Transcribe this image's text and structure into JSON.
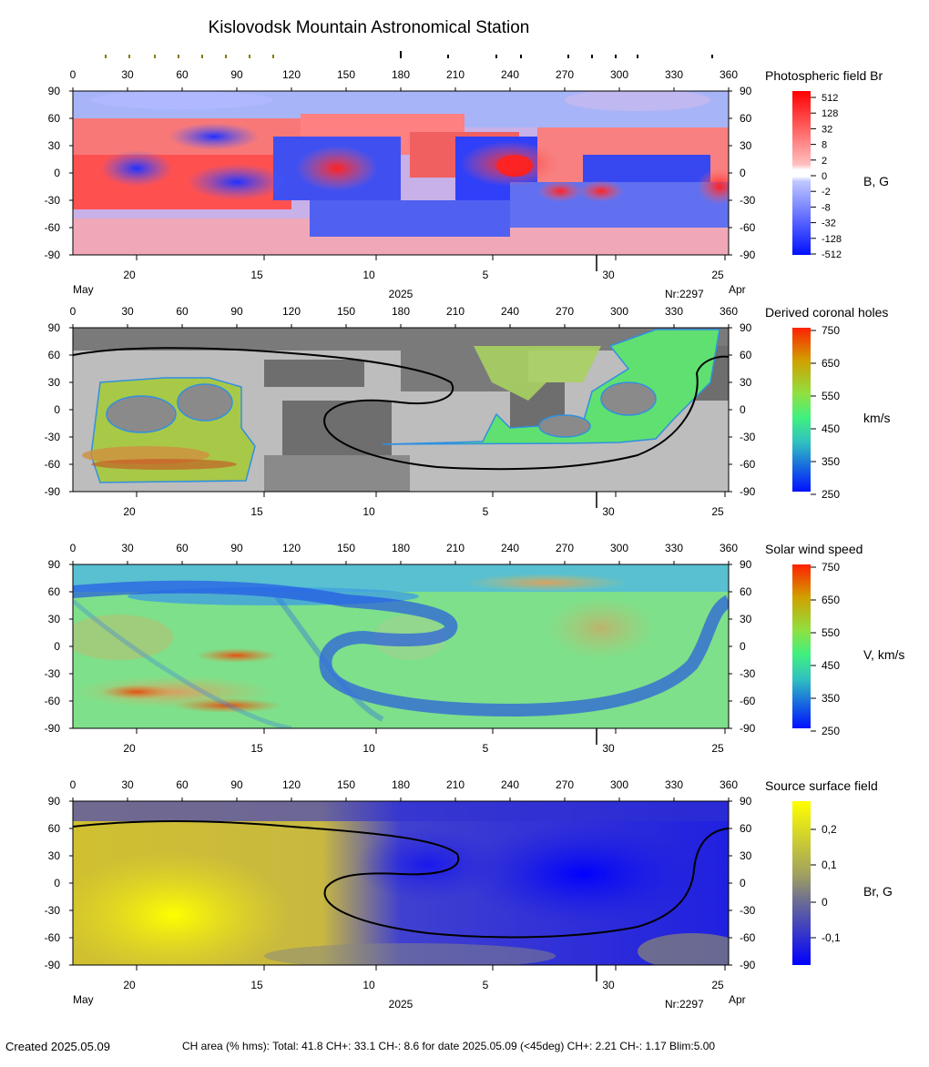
{
  "title": "Kislovodsk Mountain Astronomical Station",
  "created": "Created  2025.05.09",
  "stats": "CH area (% hms): Total: 41.8 CH+: 33.1    CH-: 8.6 for date 2025.05.09 (<45deg) CH+: 2.21     CH-: 1.17 Blim:5.00",
  "colors": {
    "positive": "#ff2020",
    "negative": "#2020ff",
    "coronal_gray_light": "#bdbdbd",
    "coronal_gray_dark": "#6e6e6e",
    "source_pos": "#ffff00",
    "source_neg": "#0000ff"
  },
  "chart_data": [
    {
      "type": "heatmap",
      "title": "Photospheric field Br",
      "unit_label": "B, G",
      "x_ticks": [
        "0",
        "30",
        "60",
        "90",
        "120",
        "150",
        "180",
        "210",
        "240",
        "270",
        "300",
        "330",
        "360"
      ],
      "y_ticks": [
        "90",
        "60",
        "30",
        "0",
        "-30",
        "-60",
        "-90"
      ],
      "xlim": [
        0,
        360
      ],
      "ylim": [
        -90,
        90
      ],
      "date_ticks": [
        "20",
        "15",
        "10",
        "5",
        "30",
        "25"
      ],
      "month_left": "May",
      "year": "2025",
      "carrington": "Nr:2297",
      "month_right": "Apr",
      "colorbar_labels": [
        "512",
        "128",
        "32",
        "8",
        "2",
        "0",
        "-2",
        "-8",
        "-32",
        "-128",
        "-512"
      ]
    },
    {
      "type": "heatmap",
      "title": "Derived coronal holes",
      "unit_label": "km/s",
      "x_ticks": [
        "0",
        "30",
        "60",
        "90",
        "120",
        "150",
        "180",
        "210",
        "240",
        "270",
        "300",
        "330",
        "360"
      ],
      "x_ticks_right": "360",
      "y_ticks": [
        "90",
        "60",
        "30",
        "0",
        "-30",
        "-60",
        "-90"
      ],
      "xlim": [
        0,
        360
      ],
      "ylim": [
        -90,
        90
      ],
      "date_ticks": [
        "20",
        "15",
        "10",
        "5",
        "30",
        "25"
      ],
      "colorbar_labels": [
        "750",
        "650",
        "550",
        "450",
        "350",
        "250"
      ]
    },
    {
      "type": "heatmap",
      "title": "Solar wind speed",
      "unit_label": "V, km/s",
      "x_ticks": [
        "0",
        "30",
        "60",
        "90",
        "120",
        "150",
        "180",
        "210",
        "240",
        "270",
        "300",
        "330",
        "360"
      ],
      "y_ticks": [
        "90",
        "60",
        "30",
        "0",
        "-30",
        "-60",
        "-90"
      ],
      "xlim": [
        0,
        360
      ],
      "ylim": [
        -90,
        90
      ],
      "date_ticks": [
        "20",
        "15",
        "10",
        "5",
        "30",
        "25"
      ],
      "colorbar_labels": [
        "750",
        "650",
        "550",
        "450",
        "350",
        "250"
      ]
    },
    {
      "type": "heatmap",
      "title": "Source surface field",
      "unit_label": "Br, G",
      "x_ticks": [
        "0",
        "30",
        "60",
        "90",
        "120",
        "150",
        "180",
        "210",
        "240",
        "270",
        "300",
        "330",
        "360"
      ],
      "y_ticks": [
        "90",
        "60",
        "30",
        "0",
        "-30",
        "-60",
        "-90"
      ],
      "xlim": [
        0,
        360
      ],
      "ylim": [
        -90,
        90
      ],
      "date_ticks": [
        "20",
        "15",
        "10",
        "5",
        "30",
        "25"
      ],
      "month_left": "May",
      "year": "2025",
      "carrington": "Nr:2297",
      "month_right": "Apr",
      "colorbar_labels": [
        "0,2",
        "0,1",
        "0",
        "-0,1"
      ]
    }
  ]
}
